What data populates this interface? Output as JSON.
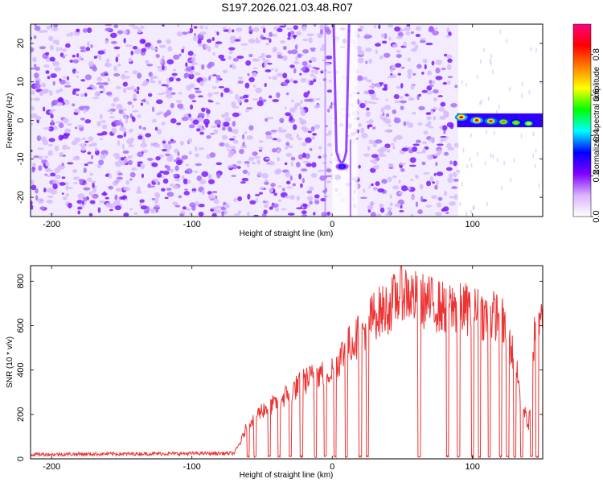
{
  "title": "S197.2026.021.03.48.R07",
  "chart_data": [
    {
      "type": "heatmap",
      "title": "S197.2026.021.03.48.R07",
      "xlabel": "Height of straight line (km)",
      "ylabel": "Frequency (Hz)",
      "xlim": [
        -215,
        150
      ],
      "ylim": [
        -25,
        25
      ],
      "x_ticks": [
        -200,
        -100,
        0,
        100
      ],
      "y_ticks": [
        -20,
        -10,
        0,
        10,
        20
      ],
      "colorbar": {
        "label": "Normalized spectral amplitude",
        "range": [
          0,
          0.95
        ],
        "ticks": [
          0,
          0.2,
          0.4,
          0.6,
          0.8
        ],
        "colormap": [
          "#ffffff",
          "#d9b3ff",
          "#8000ff",
          "#0000ff",
          "#00ffff",
          "#00ff00",
          "#ffff00",
          "#ff8000",
          "#ff0000",
          "#ff0080"
        ]
      },
      "features": [
        {
          "x": 7,
          "y": -12,
          "value": 0.35
        },
        {
          "x": 92,
          "y": 0.8,
          "value": 0.85
        },
        {
          "x": 103,
          "y": 0,
          "value": 0.85
        },
        {
          "x": 113,
          "y": -0.2,
          "value": 0.8
        },
        {
          "x": 122,
          "y": -0.4,
          "value": 0.75
        },
        {
          "x": 131,
          "y": -0.6,
          "value": 0.7
        },
        {
          "x": 140,
          "y": -0.8,
          "value": 0.65
        }
      ]
    },
    {
      "type": "line",
      "xlabel": "Height of straight line (km)",
      "ylabel": "SNR (10 * v/v)",
      "xlim": [
        -215,
        150
      ],
      "ylim": [
        0,
        870
      ],
      "x_ticks": [
        -200,
        -100,
        0,
        100
      ],
      "y_ticks": [
        0,
        200,
        400,
        600,
        800
      ],
      "color": "#ff3333",
      "series": [
        {
          "x": [
            -215,
            -70,
            -65,
            -60,
            -50,
            -40,
            -30,
            -20,
            -10,
            0,
            10,
            20,
            30,
            40,
            50,
            60,
            70,
            80,
            90,
            100,
            110,
            120,
            130,
            135,
            140,
            145,
            150
          ],
          "values": [
            20,
            25,
            80,
            160,
            220,
            250,
            300,
            350,
            380,
            400,
            500,
            560,
            650,
            680,
            760,
            720,
            700,
            680,
            680,
            670,
            640,
            650,
            450,
            250,
            150,
            650,
            700
          ]
        }
      ],
      "dropouts_x": [
        -60,
        -55,
        -45,
        -38,
        -30,
        -22,
        -12,
        -5,
        2,
        10,
        20,
        25,
        62,
        82,
        90,
        100,
        105,
        112,
        120,
        125,
        130,
        135,
        142,
        146
      ]
    }
  ]
}
